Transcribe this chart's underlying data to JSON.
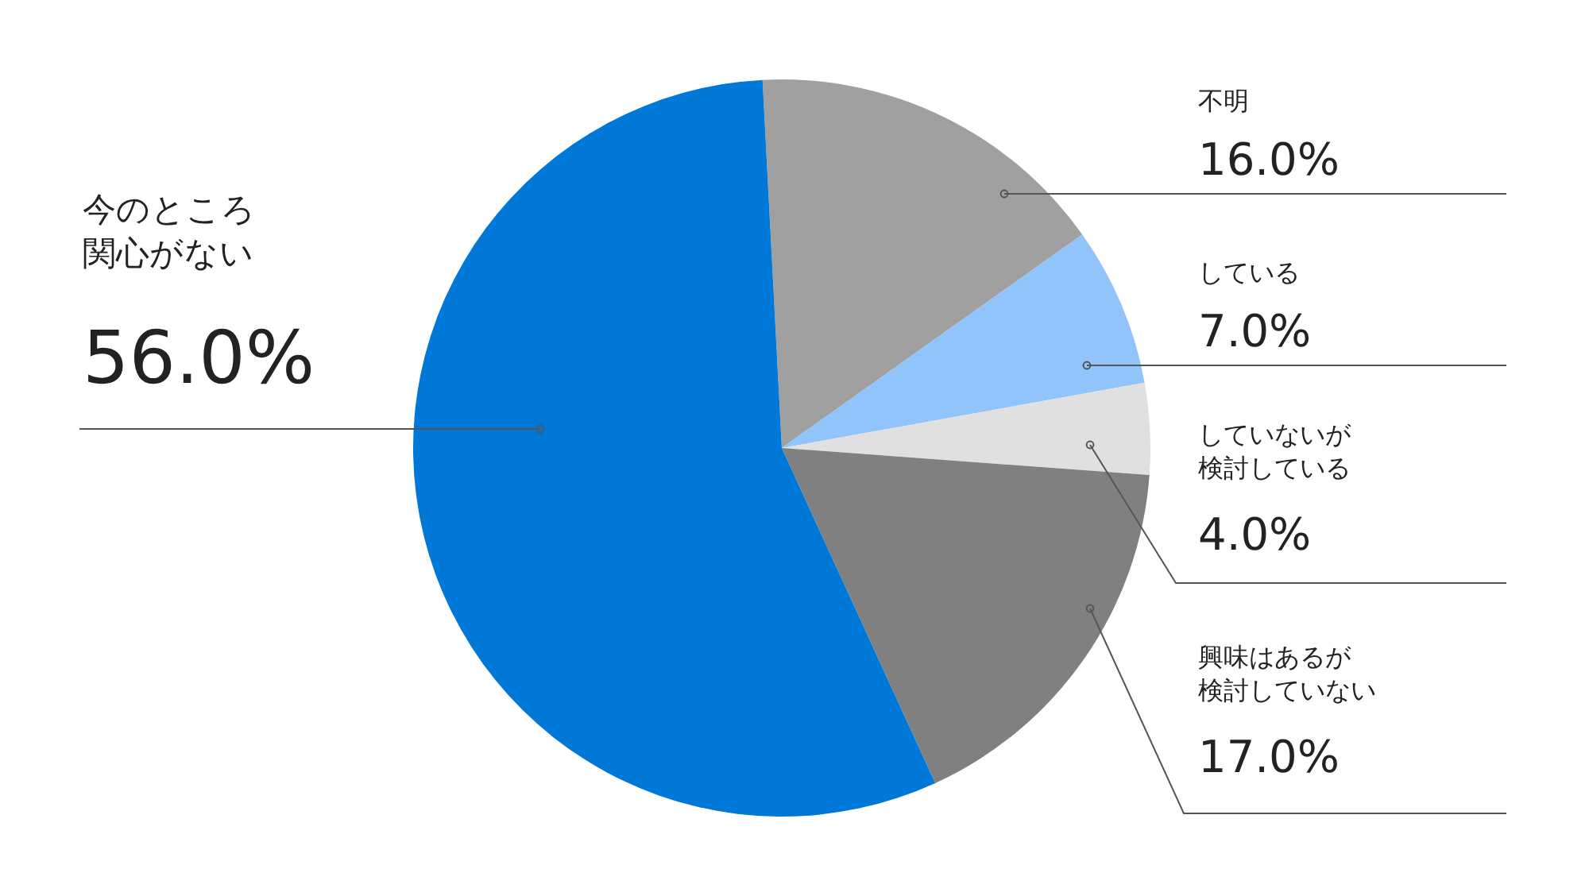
{
  "chart_data": {
    "type": "pie",
    "categories": [
      "不明",
      "している",
      "していないが検討している",
      "興味はあるが検討していない",
      "今のところ関心がない"
    ],
    "values": [
      16,
      7,
      4,
      17,
      56
    ],
    "colors": [
      "#a0a0a0",
      "#90c4fb",
      "#e0e0e0",
      "#808080",
      "#0078d7"
    ],
    "value_labels": [
      "16.0%",
      "7.0%",
      "4.0%",
      "17.0%",
      "56.0%"
    ]
  }
}
